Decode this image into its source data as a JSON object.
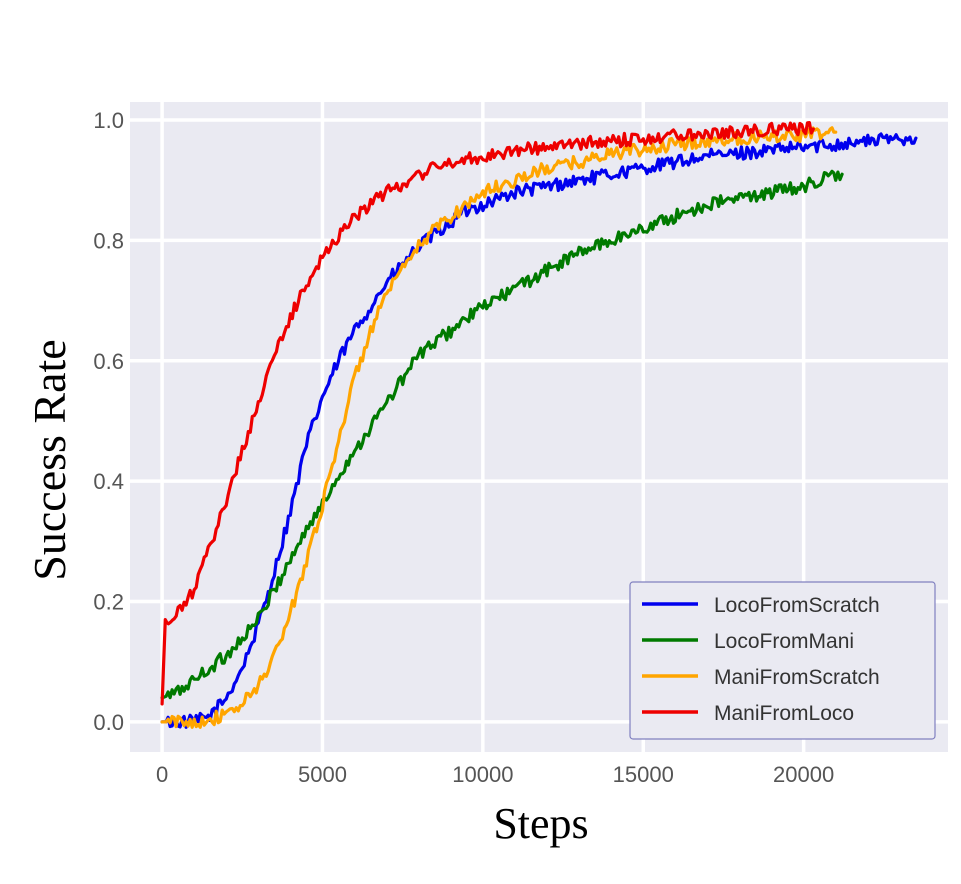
{
  "chart_data": {
    "type": "line",
    "title": "",
    "xlabel": "Steps",
    "ylabel": "Success Rate",
    "xlim": [
      -1000,
      24500
    ],
    "ylim": [
      -0.05,
      1.03
    ],
    "xticks": [
      0,
      5000,
      10000,
      15000,
      20000
    ],
    "xtick_labels": [
      "0",
      "5000",
      "10000",
      "15000",
      "20000"
    ],
    "yticks": [
      0.0,
      0.2,
      0.4,
      0.6,
      0.8,
      1.0
    ],
    "ytick_labels": [
      "0.0",
      "0.2",
      "0.4",
      "0.6",
      "0.8",
      "1.0"
    ],
    "grid": true,
    "legend_position": "lower-right",
    "background_color": "#eaeaf2",
    "series": [
      {
        "name": "LocoFromScratch",
        "color": "#0000ee",
        "x": [
          0,
          500,
          1000,
          1500,
          2000,
          2500,
          3000,
          3500,
          4000,
          4500,
          5000,
          5500,
          6000,
          6500,
          7000,
          7500,
          8000,
          8500,
          9000,
          9500,
          10000,
          11000,
          12000,
          13000,
          14000,
          15000,
          16000,
          17000,
          18000,
          19000,
          20000,
          21000,
          22000,
          23000,
          23500
        ],
        "y": [
          0.0,
          0.0,
          0.0,
          0.01,
          0.04,
          0.09,
          0.16,
          0.25,
          0.35,
          0.46,
          0.54,
          0.6,
          0.65,
          0.69,
          0.73,
          0.76,
          0.79,
          0.81,
          0.83,
          0.85,
          0.86,
          0.88,
          0.89,
          0.9,
          0.91,
          0.92,
          0.93,
          0.94,
          0.945,
          0.95,
          0.955,
          0.96,
          0.965,
          0.97,
          0.97
        ]
      },
      {
        "name": "LocoFromMani",
        "color": "#007a00",
        "x": [
          0,
          500,
          1000,
          1500,
          2000,
          2500,
          3000,
          3500,
          4000,
          4500,
          5000,
          5500,
          6000,
          6500,
          7000,
          7500,
          8000,
          8500,
          9000,
          9500,
          10000,
          11000,
          12000,
          13000,
          14000,
          15000,
          16000,
          17000,
          18000,
          19000,
          20000,
          21000,
          21200
        ],
        "y": [
          0.04,
          0.05,
          0.07,
          0.09,
          0.11,
          0.14,
          0.17,
          0.22,
          0.27,
          0.32,
          0.36,
          0.41,
          0.45,
          0.49,
          0.53,
          0.57,
          0.61,
          0.63,
          0.65,
          0.67,
          0.69,
          0.72,
          0.75,
          0.78,
          0.8,
          0.82,
          0.84,
          0.86,
          0.87,
          0.88,
          0.89,
          0.91,
          0.91
        ]
      },
      {
        "name": "ManiFromScratch",
        "color": "#ffa500",
        "x": [
          0,
          500,
          1000,
          1500,
          2000,
          2500,
          3000,
          3500,
          4000,
          4500,
          5000,
          5500,
          6000,
          6500,
          7000,
          7500,
          8000,
          8500,
          9000,
          9500,
          10000,
          11000,
          12000,
          13000,
          14000,
          15000,
          16000,
          17000,
          18000,
          19000,
          20000,
          21000
        ],
        "y": [
          0.0,
          0.0,
          0.0,
          0.005,
          0.01,
          0.03,
          0.06,
          0.11,
          0.18,
          0.27,
          0.36,
          0.47,
          0.57,
          0.65,
          0.71,
          0.75,
          0.79,
          0.82,
          0.84,
          0.86,
          0.88,
          0.9,
          0.92,
          0.93,
          0.945,
          0.95,
          0.96,
          0.965,
          0.97,
          0.975,
          0.975,
          0.98
        ]
      },
      {
        "name": "ManiFromLoco",
        "color": "#ee0000",
        "x": [
          0,
          100,
          200,
          500,
          1000,
          1500,
          2000,
          2500,
          3000,
          3500,
          4000,
          4500,
          5000,
          5500,
          6000,
          6500,
          7000,
          7500,
          8000,
          8500,
          9000,
          10000,
          11000,
          12000,
          13000,
          14000,
          15000,
          16000,
          17000,
          18000,
          19000,
          20000,
          20300
        ],
        "y": [
          0.03,
          0.17,
          0.16,
          0.18,
          0.22,
          0.29,
          0.37,
          0.45,
          0.53,
          0.61,
          0.67,
          0.73,
          0.77,
          0.81,
          0.84,
          0.86,
          0.88,
          0.895,
          0.91,
          0.92,
          0.93,
          0.94,
          0.95,
          0.955,
          0.96,
          0.965,
          0.97,
          0.975,
          0.98,
          0.98,
          0.985,
          0.985,
          0.985
        ]
      }
    ]
  }
}
